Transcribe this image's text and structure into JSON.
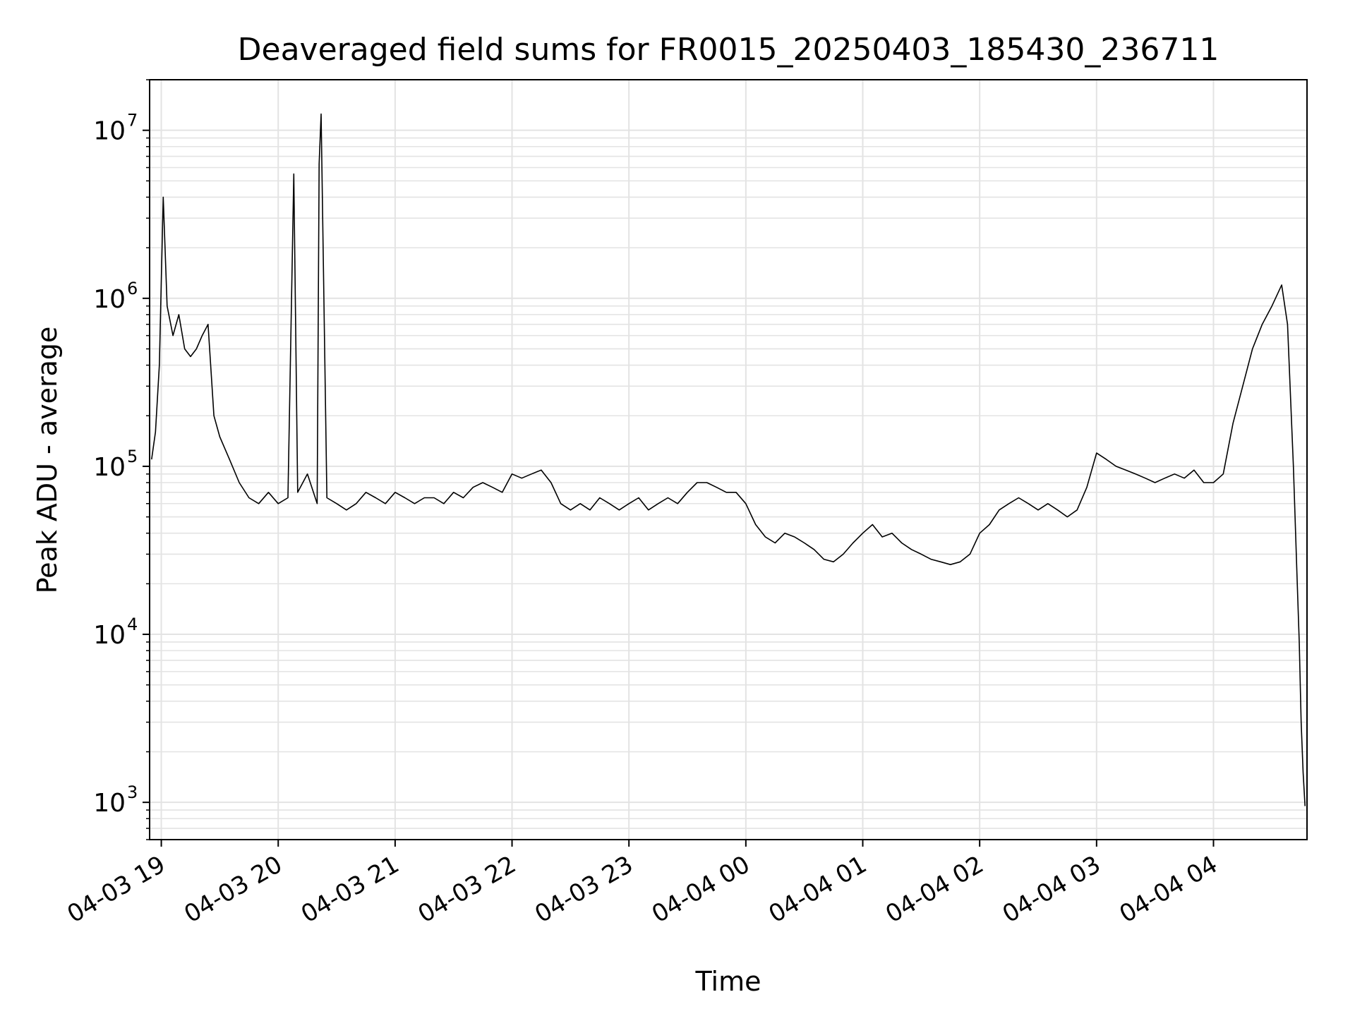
{
  "chart_data": {
    "type": "line",
    "title": "Deaveraged field sums for FR0015_20250403_185430_236711",
    "xlabel": "Time",
    "ylabel": "Peak ADU - average",
    "xlim": [
      "2025-04-03 18:54",
      "2025-04-04 04:48"
    ],
    "ylim": [
      600,
      20000000
    ],
    "yscale": "log",
    "grid": true,
    "line_color": "#000000",
    "x_ticks": [
      {
        "t": "2025-04-03 19:00",
        "label": "04-03 19"
      },
      {
        "t": "2025-04-03 20:00",
        "label": "04-03 20"
      },
      {
        "t": "2025-04-03 21:00",
        "label": "04-03 21"
      },
      {
        "t": "2025-04-03 22:00",
        "label": "04-03 22"
      },
      {
        "t": "2025-04-03 23:00",
        "label": "04-03 23"
      },
      {
        "t": "2025-04-04 00:00",
        "label": "04-04 00"
      },
      {
        "t": "2025-04-04 01:00",
        "label": "04-04 01"
      },
      {
        "t": "2025-04-04 02:00",
        "label": "04-04 02"
      },
      {
        "t": "2025-04-04 03:00",
        "label": "04-04 03"
      },
      {
        "t": "2025-04-04 04:00",
        "label": "04-04 04"
      }
    ],
    "y_ticks": [
      {
        "value": 1000,
        "base": "10",
        "exp": "3"
      },
      {
        "value": 10000,
        "base": "10",
        "exp": "4"
      },
      {
        "value": 100000,
        "base": "10",
        "exp": "5"
      },
      {
        "value": 1000000,
        "base": "10",
        "exp": "6"
      },
      {
        "value": 10000000,
        "base": "10",
        "exp": "7"
      }
    ],
    "series": [
      {
        "x": [
          "2025-04-03 18:55",
          "2025-04-03 18:57",
          "2025-04-03 18:59",
          "2025-04-03 19:00",
          "2025-04-03 19:01",
          "2025-04-03 19:03",
          "2025-04-03 19:06",
          "2025-04-03 19:09",
          "2025-04-03 19:12",
          "2025-04-03 19:15",
          "2025-04-03 19:18",
          "2025-04-03 19:21",
          "2025-04-03 19:24",
          "2025-04-03 19:27",
          "2025-04-03 19:30",
          "2025-04-03 19:35",
          "2025-04-03 19:40",
          "2025-04-03 19:45",
          "2025-04-03 19:50",
          "2025-04-03 19:55",
          "2025-04-03 20:00",
          "2025-04-03 20:05",
          "2025-04-03 20:08",
          "2025-04-03 20:10",
          "2025-04-03 20:15",
          "2025-04-03 20:20",
          "2025-04-03 20:21",
          "2025-04-03 20:22",
          "2025-04-03 20:25",
          "2025-04-03 20:30",
          "2025-04-03 20:35",
          "2025-04-03 20:40",
          "2025-04-03 20:45",
          "2025-04-03 20:50",
          "2025-04-03 20:55",
          "2025-04-03 21:00",
          "2025-04-03 21:05",
          "2025-04-03 21:10",
          "2025-04-03 21:15",
          "2025-04-03 21:20",
          "2025-04-03 21:25",
          "2025-04-03 21:30",
          "2025-04-03 21:35",
          "2025-04-03 21:40",
          "2025-04-03 21:45",
          "2025-04-03 21:50",
          "2025-04-03 21:55",
          "2025-04-03 22:00",
          "2025-04-03 22:05",
          "2025-04-03 22:10",
          "2025-04-03 22:15",
          "2025-04-03 22:20",
          "2025-04-03 22:25",
          "2025-04-03 22:30",
          "2025-04-03 22:35",
          "2025-04-03 22:40",
          "2025-04-03 22:45",
          "2025-04-03 22:50",
          "2025-04-03 22:55",
          "2025-04-03 23:00",
          "2025-04-03 23:05",
          "2025-04-03 23:10",
          "2025-04-03 23:15",
          "2025-04-03 23:20",
          "2025-04-03 23:25",
          "2025-04-03 23:30",
          "2025-04-03 23:35",
          "2025-04-03 23:40",
          "2025-04-03 23:45",
          "2025-04-03 23:50",
          "2025-04-03 23:55",
          "2025-04-04 00:00",
          "2025-04-04 00:05",
          "2025-04-04 00:10",
          "2025-04-04 00:15",
          "2025-04-04 00:20",
          "2025-04-04 00:25",
          "2025-04-04 00:30",
          "2025-04-04 00:35",
          "2025-04-04 00:40",
          "2025-04-04 00:45",
          "2025-04-04 00:50",
          "2025-04-04 00:55",
          "2025-04-04 01:00",
          "2025-04-04 01:05",
          "2025-04-04 01:10",
          "2025-04-04 01:15",
          "2025-04-04 01:20",
          "2025-04-04 01:25",
          "2025-04-04 01:30",
          "2025-04-04 01:35",
          "2025-04-04 01:40",
          "2025-04-04 01:45",
          "2025-04-04 01:50",
          "2025-04-04 01:55",
          "2025-04-04 02:00",
          "2025-04-04 02:05",
          "2025-04-04 02:10",
          "2025-04-04 02:15",
          "2025-04-04 02:20",
          "2025-04-04 02:25",
          "2025-04-04 02:30",
          "2025-04-04 02:35",
          "2025-04-04 02:40",
          "2025-04-04 02:45",
          "2025-04-04 02:50",
          "2025-04-04 02:55",
          "2025-04-04 03:00",
          "2025-04-04 03:05",
          "2025-04-04 03:10",
          "2025-04-04 03:15",
          "2025-04-04 03:20",
          "2025-04-04 03:25",
          "2025-04-04 03:30",
          "2025-04-04 03:35",
          "2025-04-04 03:40",
          "2025-04-04 03:45",
          "2025-04-04 03:50",
          "2025-04-04 03:55",
          "2025-04-04 04:00",
          "2025-04-04 04:05",
          "2025-04-04 04:10",
          "2025-04-04 04:15",
          "2025-04-04 04:20",
          "2025-04-04 04:25",
          "2025-04-04 04:30",
          "2025-04-04 04:35",
          "2025-04-04 04:38",
          "2025-04-04 04:41",
          "2025-04-04 04:43",
          "2025-04-04 04:44",
          "2025-04-04 04:45",
          "2025-04-04 04:46",
          "2025-04-04 04:47"
        ],
        "y": [
          110000,
          160000,
          400000,
          1300000,
          4000000,
          900000,
          600000,
          800000,
          500000,
          450000,
          500000,
          600000,
          700000,
          200000,
          150000,
          110000,
          80000,
          65000,
          60000,
          70000,
          60000,
          65000,
          5500000,
          70000,
          90000,
          60000,
          6300000,
          12500000,
          65000,
          60000,
          55000,
          60000,
          70000,
          65000,
          60000,
          70000,
          65000,
          60000,
          65000,
          65000,
          60000,
          70000,
          65000,
          75000,
          80000,
          75000,
          70000,
          90000,
          85000,
          90000,
          95000,
          80000,
          60000,
          55000,
          60000,
          55000,
          65000,
          60000,
          55000,
          60000,
          65000,
          55000,
          60000,
          65000,
          60000,
          70000,
          80000,
          80000,
          75000,
          70000,
          70000,
          60000,
          45000,
          38000,
          35000,
          40000,
          38000,
          35000,
          32000,
          28000,
          27000,
          30000,
          35000,
          40000,
          45000,
          38000,
          40000,
          35000,
          32000,
          30000,
          28000,
          27000,
          26000,
          27000,
          30000,
          40000,
          45000,
          55000,
          60000,
          65000,
          60000,
          55000,
          60000,
          55000,
          50000,
          55000,
          75000,
          120000,
          110000,
          100000,
          95000,
          90000,
          85000,
          80000,
          85000,
          90000,
          85000,
          95000,
          80000,
          80000,
          90000,
          180000,
          300000,
          500000,
          700000,
          900000,
          1200000,
          700000,
          100000,
          20000,
          9000,
          3000,
          1500,
          950
        ]
      }
    ]
  }
}
